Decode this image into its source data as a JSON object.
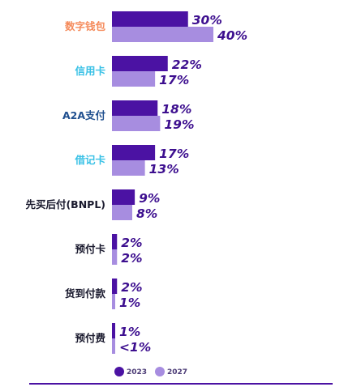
{
  "chart_data": {
    "type": "bar",
    "orientation": "horizontal",
    "categories": [
      "数字钱包",
      "信用卡",
      "A2A支付",
      "借记卡",
      "先买后付(BNPL)",
      "预付卡",
      "货到付款",
      "预付费"
    ],
    "category_colors": [
      "#f58a5a",
      "#39c1e6",
      "#1f4f8f",
      "#39c1e6",
      "#1a1a2e",
      "#1a1a2e",
      "#1a1a2e",
      "#1a1a2e"
    ],
    "series": [
      {
        "name": "2023",
        "color": "#4b12a3",
        "values": [
          30,
          22,
          18,
          17,
          9,
          2,
          2,
          1
        ],
        "labels": [
          "30%",
          "22%",
          "18%",
          "17%",
          "9%",
          "2%",
          "2%",
          "1%"
        ]
      },
      {
        "name": "2027",
        "color": "#a78de0",
        "values": [
          40,
          17,
          19,
          13,
          8,
          2,
          1,
          0.5
        ],
        "labels": [
          "40%",
          "17%",
          "19%",
          "13%",
          "8%",
          "2%",
          "1%",
          "<1%"
        ]
      }
    ],
    "xlim": [
      0,
      40
    ],
    "grid": false,
    "legend_placement": "bottom-center",
    "axis_line_color": "#4b12a3"
  }
}
